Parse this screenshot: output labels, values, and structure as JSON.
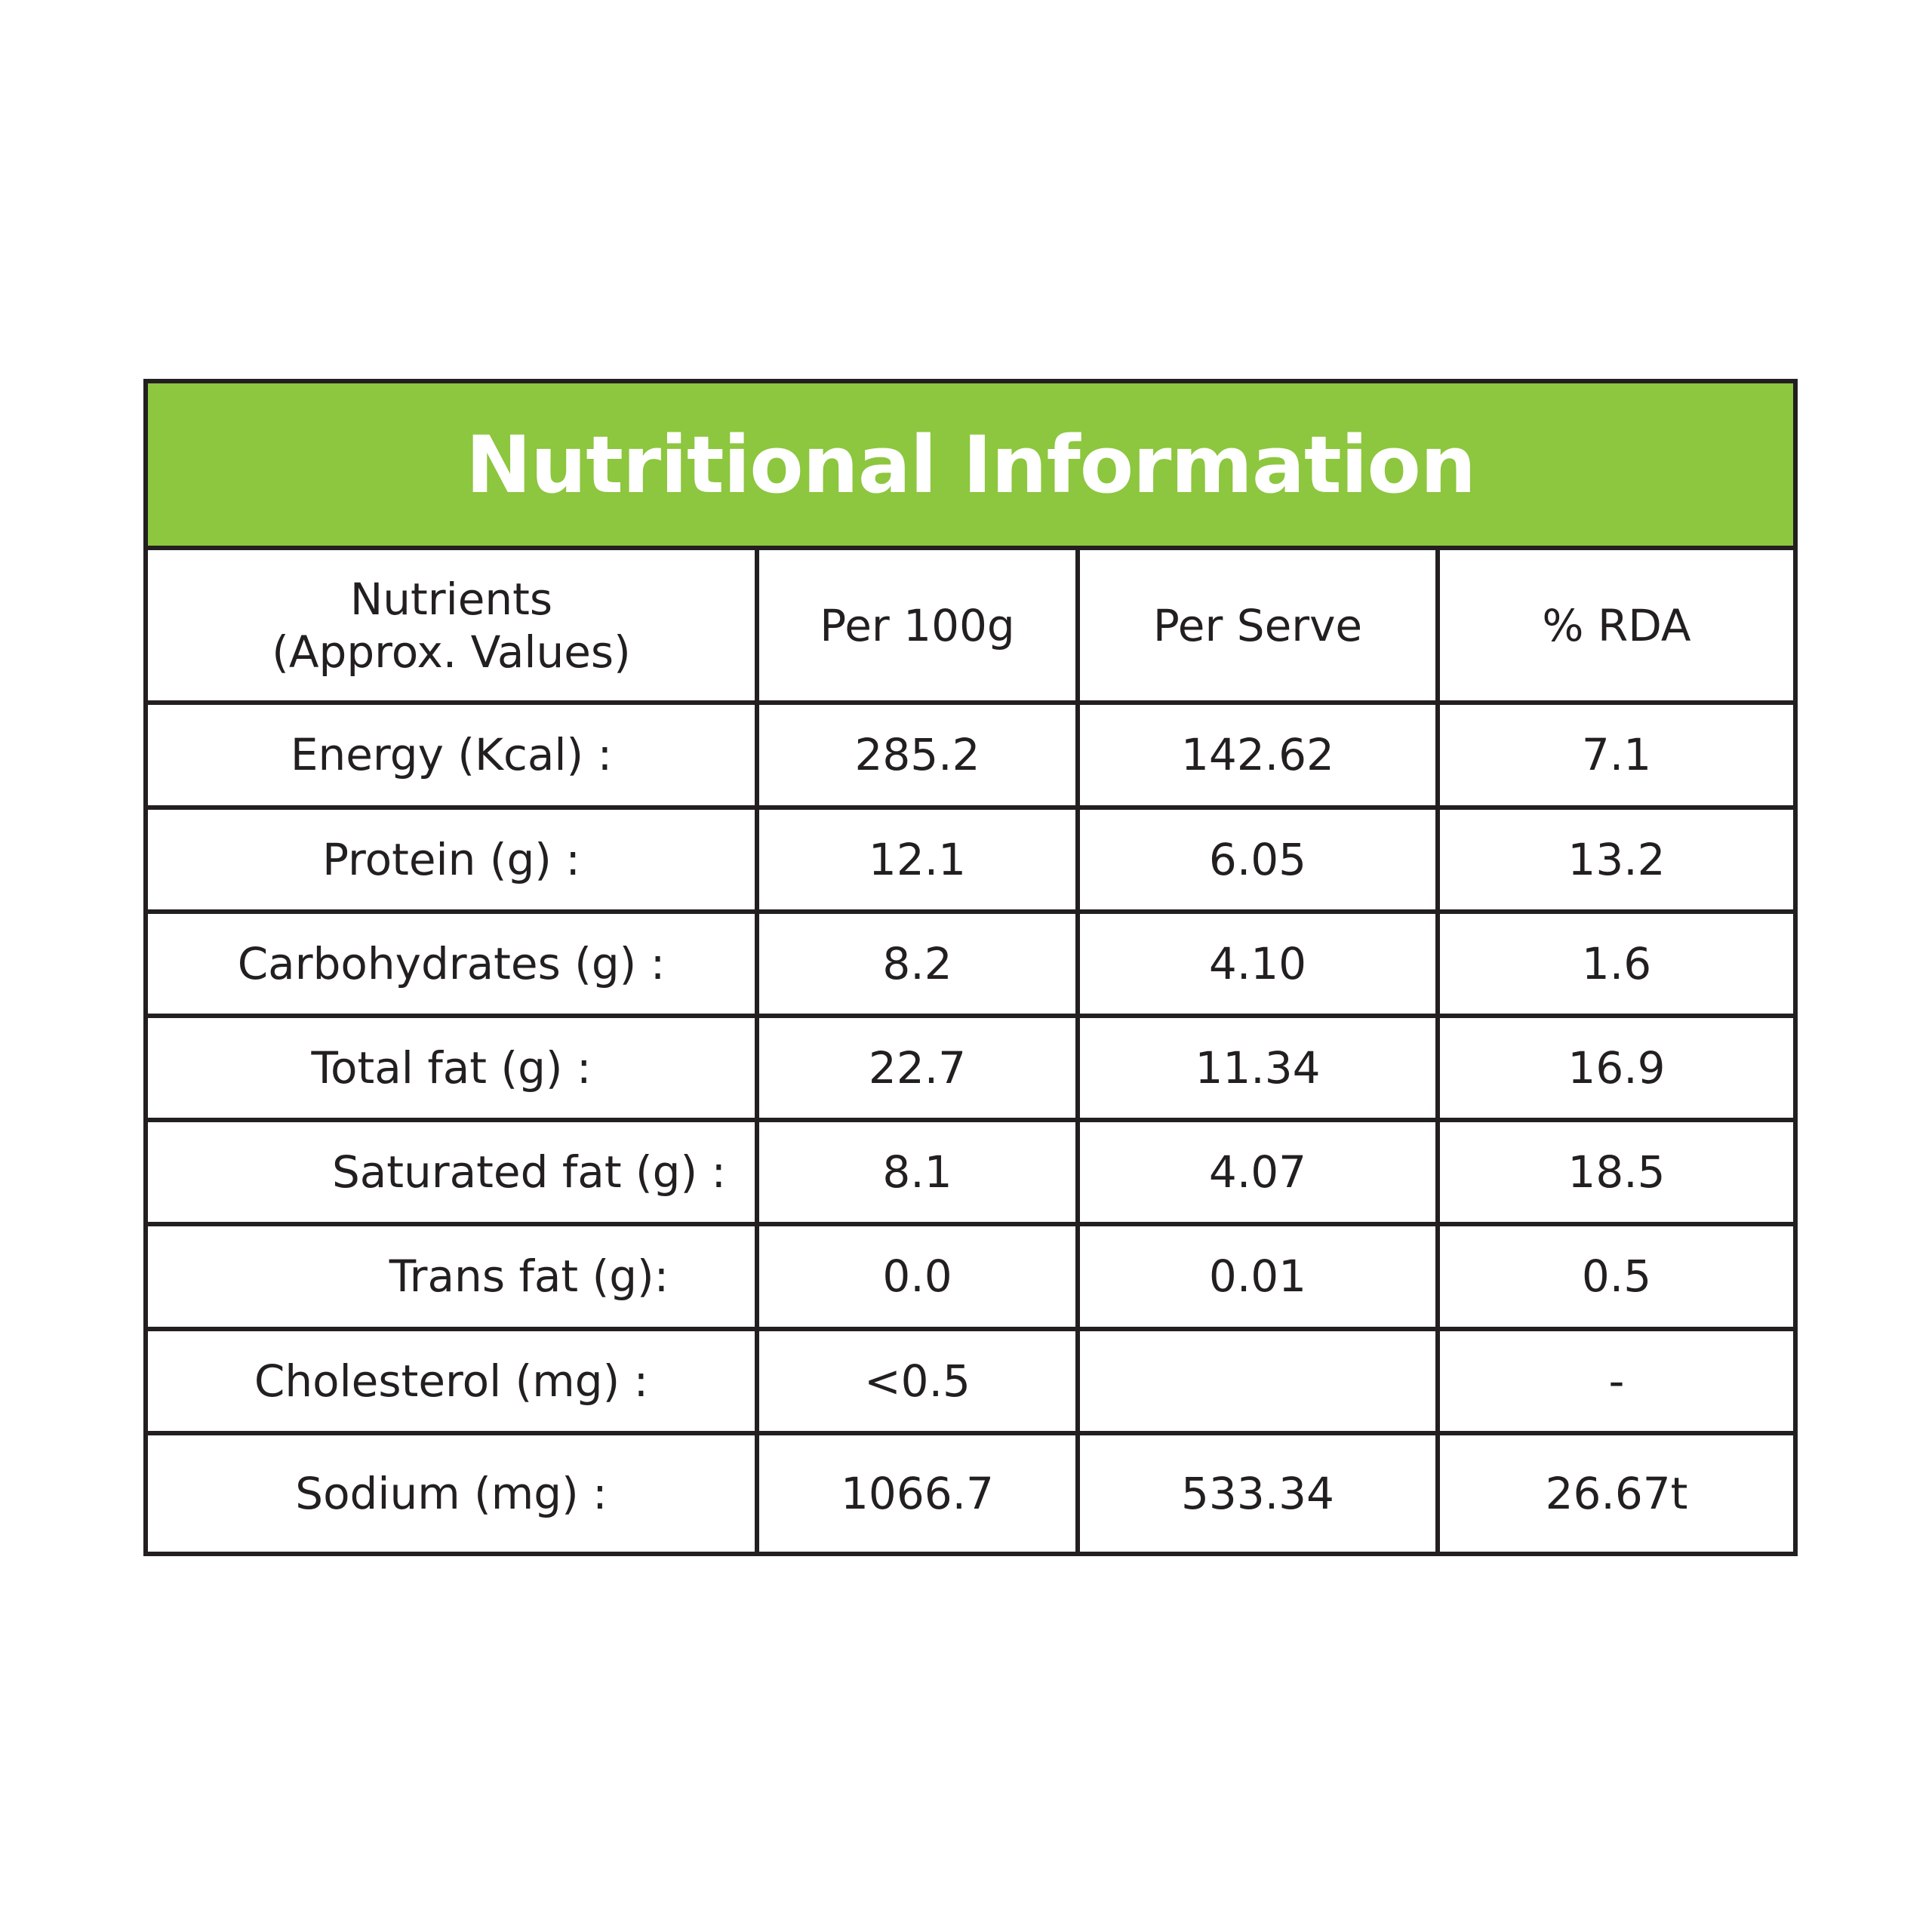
{
  "colors": {
    "title_background": "#8dc63f",
    "title_text": "#ffffff",
    "border": "#231f20",
    "text": "#231f20"
  },
  "title": "Nutritional Information",
  "header": {
    "nutrients_line1": "Nutrients",
    "nutrients_line2": "(Approx. Values)",
    "per_100g": "Per 100g",
    "per_serve": "Per Serve",
    "rda": "% RDA"
  },
  "rows": [
    {
      "label": "Energy (Kcal) :",
      "per_100g": "285.2",
      "per_serve": "142.62",
      "rda": "7.1",
      "indent": false
    },
    {
      "label": "Protein (g) :",
      "per_100g": "12.1",
      "per_serve": "6.05",
      "rda": "13.2",
      "indent": false
    },
    {
      "label": "Carbohydrates (g) :",
      "per_100g": "8.2",
      "per_serve": "4.10",
      "rda": "1.6",
      "indent": false
    },
    {
      "label": "Total fat (g) :",
      "per_100g": "22.7",
      "per_serve": "11.34",
      "rda": "16.9",
      "indent": false
    },
    {
      "label": "Saturated fat (g) :",
      "per_100g": "8.1",
      "per_serve": "4.07",
      "rda": "18.5",
      "indent": true
    },
    {
      "label": "Trans fat (g):",
      "per_100g": "0.0",
      "per_serve": "0.01",
      "rda": "0.5",
      "indent": true
    },
    {
      "label": "Cholesterol (mg) :",
      "per_100g": "<0.5",
      "per_serve": "",
      "rda": "-",
      "indent": false
    },
    {
      "label": "Sodium (mg) :",
      "per_100g": "1066.7",
      "per_serve": "533.34",
      "rda": "26.67t",
      "indent": false
    }
  ]
}
